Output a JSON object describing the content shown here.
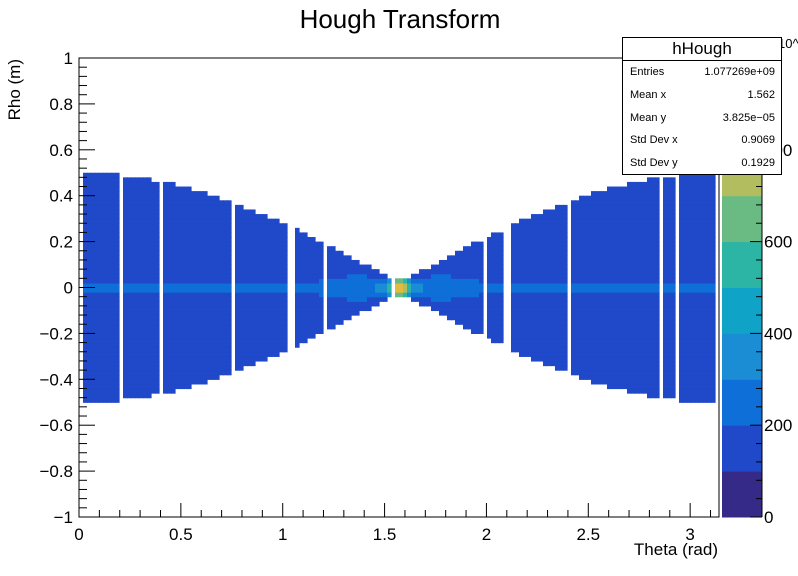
{
  "chart_data": {
    "type": "heatmap",
    "title": "Hough Transform",
    "xlabel": "Theta (rad)",
    "ylabel": "Rho (m)",
    "xlim": [
      0,
      3.1416
    ],
    "ylim": [
      -1,
      1
    ],
    "x_ticks": [
      "0",
      "0.5",
      "1",
      "1.5",
      "2",
      "2.5",
      "3"
    ],
    "y_ticks": [
      "−1",
      "−0.8",
      "−0.6",
      "−0.4",
      "−0.2",
      "0",
      "0.2",
      "0.4",
      "0.6",
      "0.8",
      "1"
    ],
    "z_ticks": [
      "0",
      "200",
      "400",
      "600",
      "800"
    ],
    "z_multiplier": "10^3",
    "zlim": [
      0,
      1000
    ],
    "colormap": [
      "#352a87",
      "#1f49c9",
      "#0f6fd8",
      "#1b8dd4",
      "#0fa3c7",
      "#2cb4a4",
      "#6abb83",
      "#b1bd5f",
      "#e3bb3e",
      "#fadf2a",
      "#f9fb0e"
    ],
    "description_values": {
      "envelope_max_abs_rho": 0.5,
      "waist_theta": 1.5708,
      "peak_value": 1000,
      "background_value": 150,
      "gap_columns_theta": [
        0.2,
        0.4,
        0.76,
        1.04,
        1.2,
        1.54,
        2.0,
        2.1,
        2.4,
        2.86,
        2.94
      ]
    }
  },
  "stats": {
    "name": "hHough",
    "rows": [
      {
        "label": "Entries",
        "value": "1.077269e+09"
      },
      {
        "label": "Mean x",
        "value": "1.562"
      },
      {
        "label": "Mean y",
        "value": "3.825e−05"
      },
      {
        "label": "Std Dev x",
        "value": "0.9069"
      },
      {
        "label": "Std Dev y",
        "value": "0.1929"
      }
    ]
  }
}
